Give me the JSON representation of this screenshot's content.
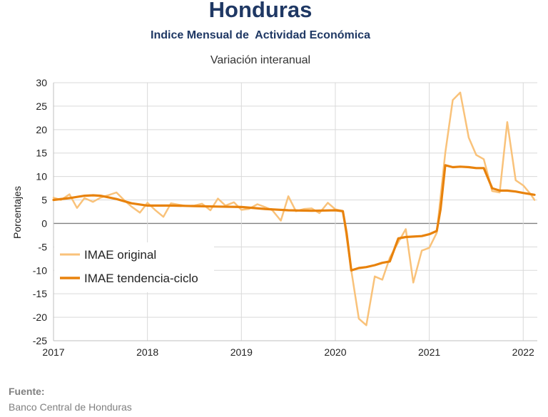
{
  "chart_data": {
    "type": "line",
    "title": "Honduras",
    "subtitle": "Indice Mensual de  Actividad Económica",
    "subtitle2": "Variación interanual",
    "ylabel": "Porcentajes",
    "xlabel": "",
    "ylim": [
      -25,
      30
    ],
    "yticks": [
      30,
      25,
      20,
      15,
      10,
      5,
      0,
      -5,
      -10,
      -15,
      -20,
      -25
    ],
    "xticks": [
      "2017",
      "2018",
      "2019",
      "2020",
      "2021",
      "2022"
    ],
    "xlim": [
      2017.0,
      2022.15
    ],
    "grid": true,
    "legend_position": "left",
    "series": [
      {
        "name": "IMAE original",
        "color": "#f9c27a",
        "x": [
          2017.0,
          2017.08,
          2017.17,
          2017.25,
          2017.33,
          2017.42,
          2017.5,
          2017.58,
          2017.67,
          2017.75,
          2017.83,
          2017.92,
          2018.0,
          2018.08,
          2018.17,
          2018.25,
          2018.33,
          2018.42,
          2018.5,
          2018.58,
          2018.67,
          2018.75,
          2018.83,
          2018.92,
          2019.0,
          2019.08,
          2019.17,
          2019.25,
          2019.33,
          2019.42,
          2019.5,
          2019.58,
          2019.67,
          2019.75,
          2019.83,
          2019.92,
          2020.0,
          2020.08,
          2020.17,
          2020.25,
          2020.33,
          2020.42,
          2020.5,
          2020.58,
          2020.67,
          2020.75,
          2020.83,
          2020.92,
          2021.0,
          2021.08,
          2021.17,
          2021.25,
          2021.33,
          2021.42,
          2021.5,
          2021.58,
          2021.67,
          2021.75,
          2021.83,
          2021.92,
          2022.0,
          2022.08,
          2022.12
        ],
        "values": [
          5.5,
          5.0,
          6.2,
          3.3,
          5.4,
          4.6,
          5.5,
          6.0,
          6.6,
          5.0,
          3.6,
          2.3,
          4.4,
          2.9,
          1.4,
          4.3,
          4.0,
          3.7,
          3.8,
          4.2,
          2.8,
          5.3,
          3.8,
          4.5,
          2.9,
          3.1,
          4.1,
          3.5,
          2.8,
          0.6,
          5.8,
          2.6,
          3.1,
          3.2,
          2.2,
          4.4,
          3.0,
          2.7,
          -10.0,
          -20.3,
          -21.7,
          -11.3,
          -12.0,
          -7.3,
          -4.0,
          -1.2,
          -12.6,
          -5.8,
          -5.2,
          -2.0,
          15.0,
          26.3,
          27.9,
          18.3,
          14.6,
          13.7,
          6.9,
          6.6,
          21.6,
          9.2,
          8.1,
          6.2,
          5.0
        ]
      },
      {
        "name": "IMAE tendencia-ciclo",
        "color": "#e8820c",
        "x": [
          2017.0,
          2017.17,
          2017.33,
          2017.42,
          2017.5,
          2017.67,
          2017.83,
          2018.0,
          2018.25,
          2018.5,
          2018.75,
          2019.0,
          2019.25,
          2019.5,
          2019.75,
          2020.0,
          2020.08,
          2020.12,
          2020.17,
          2020.25,
          2020.33,
          2020.42,
          2020.5,
          2020.58,
          2020.67,
          2020.75,
          2020.83,
          2020.92,
          2021.0,
          2021.08,
          2021.12,
          2021.17,
          2021.25,
          2021.33,
          2021.42,
          2021.5,
          2021.58,
          2021.67,
          2021.75,
          2021.83,
          2021.92,
          2022.0,
          2022.12
        ],
        "values": [
          5.0,
          5.4,
          5.9,
          6.0,
          5.9,
          5.2,
          4.3,
          3.8,
          3.8,
          3.7,
          3.6,
          3.5,
          3.1,
          2.8,
          2.7,
          2.8,
          2.6,
          -2.0,
          -10.0,
          -9.5,
          -9.3,
          -8.9,
          -8.4,
          -8.1,
          -3.2,
          -2.9,
          -2.8,
          -2.7,
          -2.3,
          -1.6,
          3.0,
          12.4,
          12.0,
          12.1,
          12.0,
          11.8,
          11.8,
          7.5,
          7.0,
          7.0,
          6.8,
          6.5,
          6.1
        ]
      }
    ]
  },
  "source": {
    "label": "Fuente:",
    "text": "Banco Central de Honduras"
  }
}
